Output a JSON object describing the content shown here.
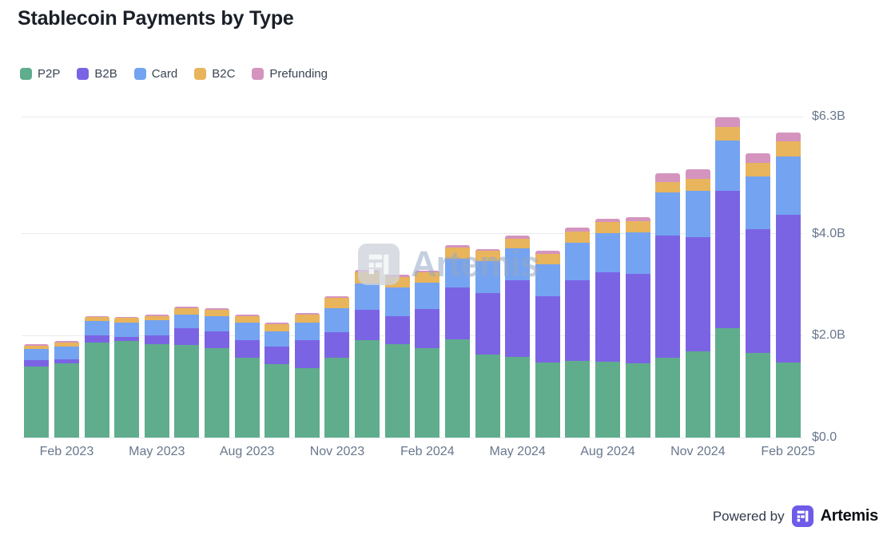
{
  "title": "Stablecoin Payments by Type",
  "legend": [
    {
      "label": "P2P",
      "color": "#5FAD8D"
    },
    {
      "label": "B2B",
      "color": "#7B64E4"
    },
    {
      "label": "Card",
      "color": "#74A3F1"
    },
    {
      "label": "B2C",
      "color": "#E8B45C"
    },
    {
      "label": "Prefunding",
      "color": "#D494BE"
    }
  ],
  "watermark": {
    "text": "Artemis"
  },
  "footer": {
    "powered_by": "Powered by",
    "brand": "Artemis"
  },
  "chart_data": {
    "type": "bar",
    "stacked": true,
    "title": "Stablecoin Payments by Type",
    "unit": "billions USD",
    "ylim": [
      0,
      6.3
    ],
    "grid": true,
    "legend_position": "top-left",
    "y_ticks": [
      {
        "value": 0.0,
        "label": "$0.0"
      },
      {
        "value": 2.0,
        "label": "$2.0B"
      },
      {
        "value": 4.0,
        "label": "$4.0B"
      },
      {
        "value": 6.3,
        "label": "$6.3B"
      }
    ],
    "categories": [
      "Jan 2023",
      "Feb 2023",
      "Mar 2023",
      "Apr 2023",
      "May 2023",
      "Jun 2023",
      "Jul 2023",
      "Aug 2023",
      "Sep 2023",
      "Oct 2023",
      "Nov 2023",
      "Dec 2023",
      "Jan 2024",
      "Feb 2024",
      "Mar 2024",
      "Apr 2024",
      "May 2024",
      "Jun 2024",
      "Jul 2024",
      "Aug 2024",
      "Sep 2024",
      "Oct 2024",
      "Nov 2024",
      "Dec 2024",
      "Jan 2025",
      "Feb 2025"
    ],
    "x_tick_indices": [
      1,
      4,
      7,
      10,
      13,
      16,
      19,
      22,
      25
    ],
    "x_tick_labels": [
      "Feb 2023",
      "May 2023",
      "Aug 2023",
      "Nov 2023",
      "Feb 2024",
      "May 2024",
      "Aug 2024",
      "Nov 2024",
      "Feb 2025"
    ],
    "series": [
      {
        "name": "P2P",
        "color": "#5FAD8D",
        "values": [
          1.39,
          1.45,
          1.86,
          1.89,
          1.84,
          1.82,
          1.75,
          1.56,
          1.44,
          1.37,
          1.57,
          1.91,
          1.83,
          1.75,
          1.92,
          1.63,
          1.58,
          1.47,
          1.5,
          1.49,
          1.45,
          1.57,
          1.69,
          2.15,
          1.66,
          1.47
        ]
      },
      {
        "name": "B2B",
        "color": "#7B64E4",
        "values": [
          0.13,
          0.09,
          0.15,
          0.09,
          0.17,
          0.32,
          0.33,
          0.35,
          0.35,
          0.54,
          0.5,
          0.6,
          0.55,
          0.77,
          1.03,
          1.21,
          1.51,
          1.3,
          1.58,
          1.76,
          1.77,
          2.4,
          2.24,
          2.7,
          2.43,
          2.91
        ]
      },
      {
        "name": "Card",
        "color": "#74A3F1",
        "values": [
          0.22,
          0.24,
          0.28,
          0.27,
          0.29,
          0.27,
          0.3,
          0.34,
          0.3,
          0.34,
          0.47,
          0.52,
          0.56,
          0.52,
          0.56,
          0.63,
          0.63,
          0.63,
          0.75,
          0.76,
          0.8,
          0.84,
          0.92,
          0.98,
          1.04,
          1.14
        ]
      },
      {
        "name": "B2C",
        "color": "#E8B45C",
        "values": [
          0.07,
          0.08,
          0.08,
          0.1,
          0.09,
          0.13,
          0.13,
          0.14,
          0.14,
          0.16,
          0.2,
          0.21,
          0.21,
          0.2,
          0.22,
          0.19,
          0.19,
          0.2,
          0.22,
          0.22,
          0.23,
          0.2,
          0.23,
          0.26,
          0.26,
          0.3
        ]
      },
      {
        "name": "Prefunding",
        "color": "#D494BE",
        "values": [
          0.03,
          0.03,
          0.02,
          0.02,
          0.02,
          0.03,
          0.03,
          0.03,
          0.03,
          0.03,
          0.04,
          0.05,
          0.04,
          0.04,
          0.04,
          0.04,
          0.05,
          0.06,
          0.07,
          0.06,
          0.07,
          0.18,
          0.19,
          0.19,
          0.19,
          0.17
        ]
      }
    ]
  }
}
